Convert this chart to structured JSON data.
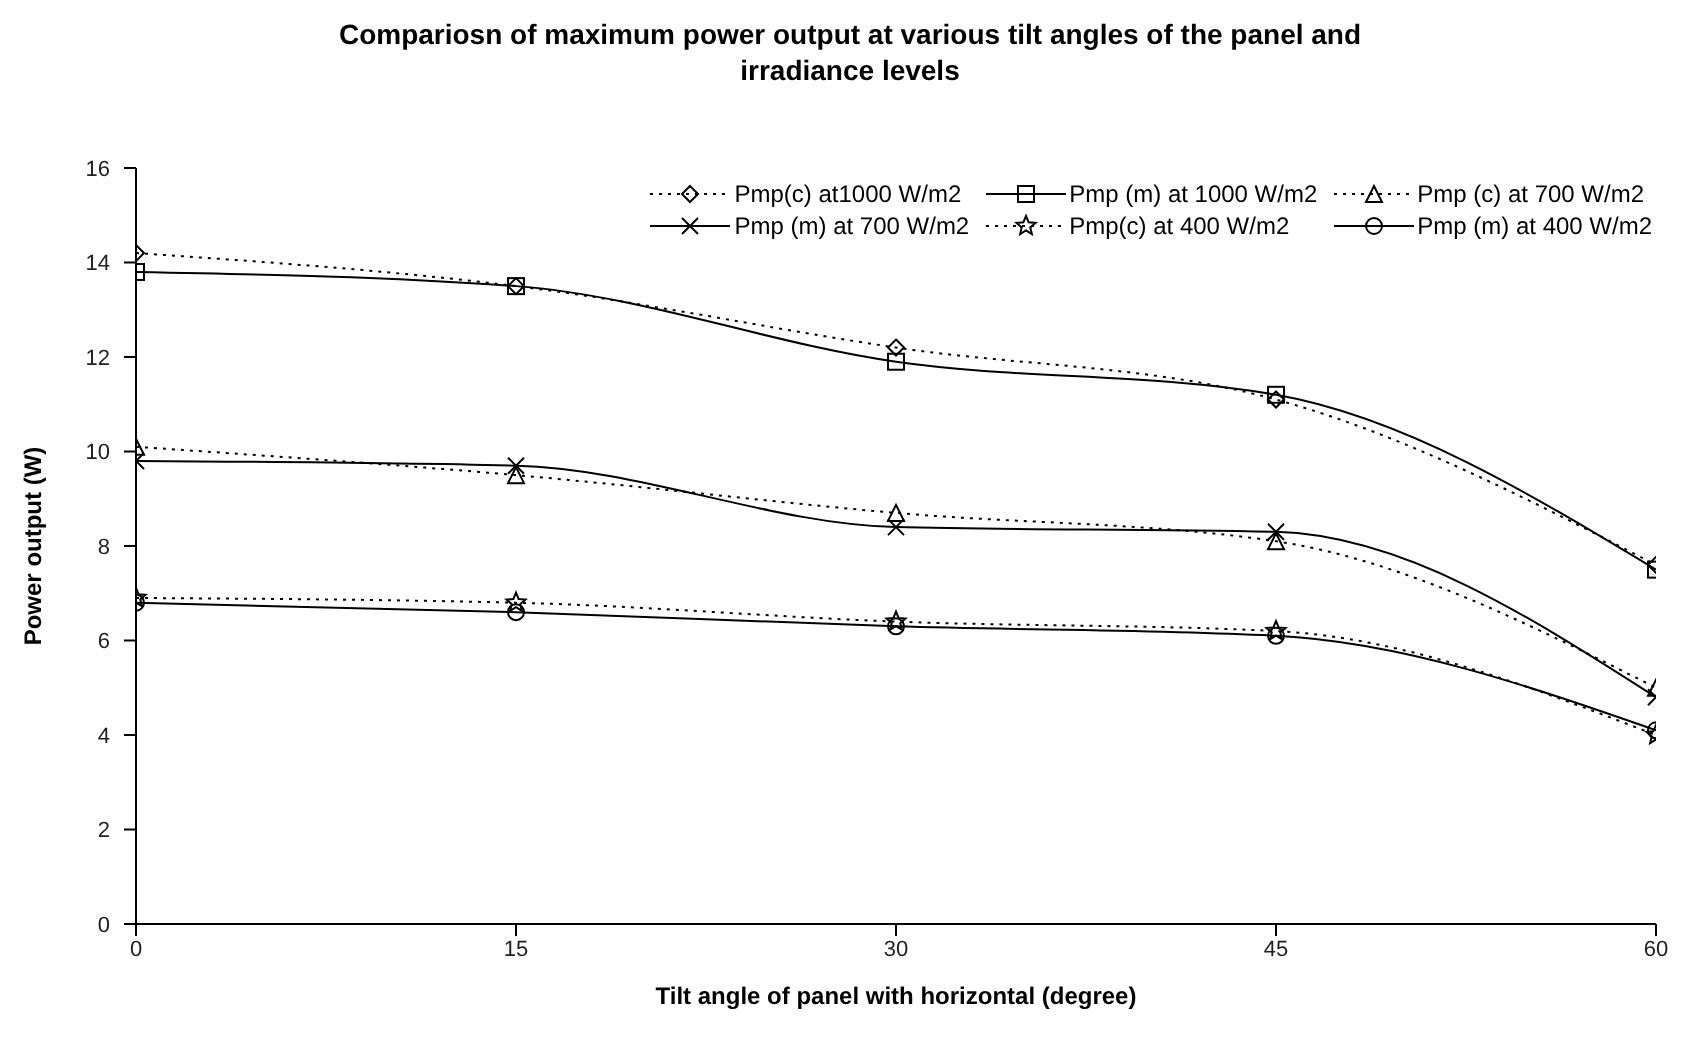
{
  "chart_data": {
    "type": "line",
    "title": "Compariosn of maximum power output at various tilt angles of the panel and irradiance levels",
    "xlabel": "Tilt angle of panel with horizontal (degree)",
    "ylabel": "Power output (W)",
    "x": [
      0,
      15,
      30,
      45,
      60
    ],
    "xlim": [
      0,
      60
    ],
    "xticks": [
      0,
      15,
      30,
      45,
      60
    ],
    "ylim": [
      0,
      16
    ],
    "yticks": [
      0,
      2,
      4,
      6,
      8,
      10,
      12,
      14,
      16
    ],
    "grid": false,
    "legend": "top right",
    "series": [
      {
        "name": "Pmp(c) at1000 W/m2",
        "color": "#000000",
        "marker": "diamond",
        "line_style": "dotted",
        "values": [
          14.2,
          13.5,
          12.2,
          11.1,
          7.6
        ]
      },
      {
        "name": "Pmp (m) at 1000 W/m2",
        "color": "#000000",
        "marker": "square",
        "line_style": "solid",
        "values": [
          13.8,
          13.5,
          11.9,
          11.2,
          7.5
        ]
      },
      {
        "name": "Pmp (c) at 700 W/m2",
        "color": "#000000",
        "marker": "triangle",
        "line_style": "dotted",
        "values": [
          10.1,
          9.5,
          8.7,
          8.1,
          5.0
        ]
      },
      {
        "name": "Pmp (m) at 700 W/m2",
        "color": "#000000",
        "marker": "cross",
        "line_style": "solid",
        "values": [
          9.8,
          9.7,
          8.4,
          8.3,
          4.8
        ]
      },
      {
        "name": "Pmp(c) at 400 W/m2",
        "color": "#000000",
        "marker": "star",
        "line_style": "dotted",
        "values": [
          6.9,
          6.8,
          6.4,
          6.2,
          4.0
        ]
      },
      {
        "name": "Pmp (m) at 400 W/m2",
        "color": "#000000",
        "marker": "circle",
        "line_style": "solid",
        "values": [
          6.8,
          6.6,
          6.3,
          6.1,
          4.1
        ]
      }
    ]
  }
}
